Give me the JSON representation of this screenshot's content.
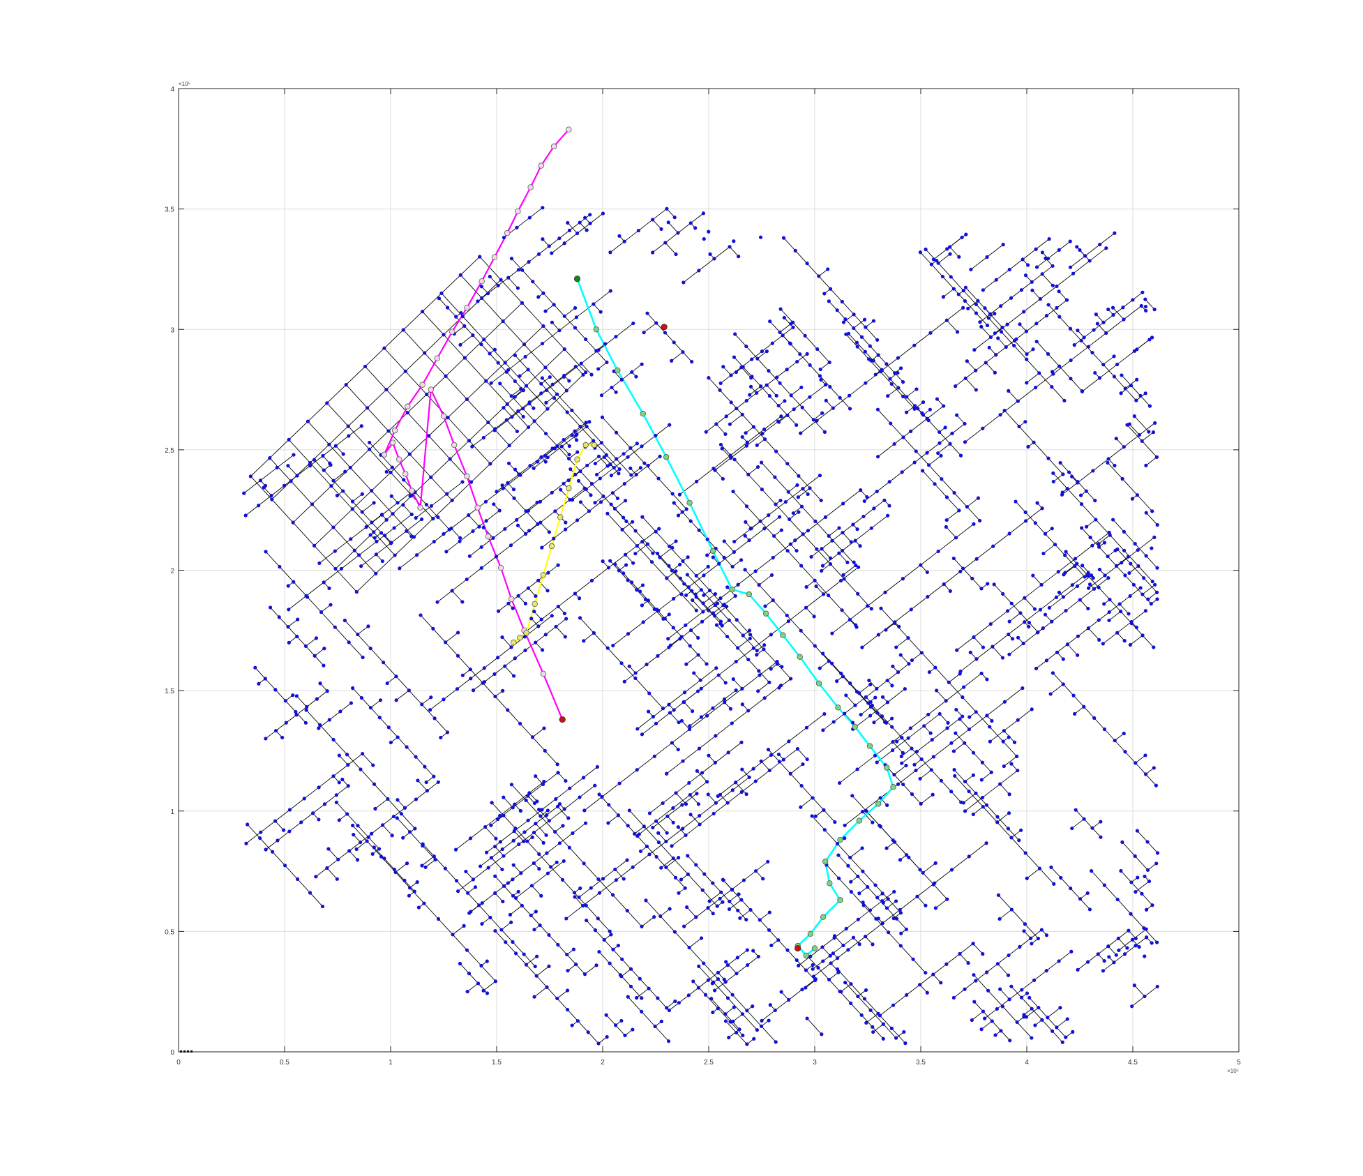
{
  "chart_data": {
    "type": "scatter",
    "title": "",
    "xlabel": "",
    "ylabel": "",
    "xlim": [
      0,
      500000
    ],
    "ylim": [
      0,
      400000
    ],
    "grid": true,
    "legend": "none",
    "x_ticks": [
      0,
      50000,
      100000,
      150000,
      200000,
      250000,
      300000,
      350000,
      400000,
      450000,
      500000
    ],
    "y_ticks": [
      0,
      50000,
      100000,
      150000,
      200000,
      250000,
      300000,
      350000,
      400000
    ],
    "x_tick_labels": [
      "0",
      "0.5",
      "1",
      "1.5",
      "2",
      "2.5",
      "3",
      "3.5",
      "4",
      "4.5",
      "5"
    ],
    "y_tick_labels": [
      "0",
      "0.5",
      "1",
      "1.5",
      "2",
      "2.5",
      "3",
      "3.5",
      "4"
    ],
    "x_exponent_label": "×10⁵",
    "y_exponent_label": "×10⁵",
    "colors": {
      "node": "#1010d8",
      "edge": "#000000",
      "path_magenta": "#ff00ff",
      "path_yellow": "#ffff00",
      "path_cyan": "#00ffff",
      "waypoint_fill": "#7fd47f",
      "endpoint": "#d01010",
      "grid": "#dcdcdc"
    },
    "series": [
      {
        "style": "magenta-path",
        "x": [
          181000,
          172000,
          163000,
          157000,
          152000,
          146000,
          141000,
          136000,
          130000,
          125000,
          119000,
          114000,
          110000,
          107000,
          104000,
          101000,
          97000,
          102000,
          108000,
          115000,
          122000,
          129000,
          136000,
          143000,
          149000,
          155000,
          160000,
          166000,
          171000,
          177000,
          184000
        ],
        "y": [
          138000,
          157000,
          175000,
          188000,
          201000,
          214000,
          226000,
          239000,
          252000,
          264000,
          275000,
          226000,
          233000,
          240000,
          246000,
          253000,
          248000,
          258000,
          268000,
          277000,
          288000,
          299000,
          309000,
          320000,
          330000,
          340000,
          349000,
          359000,
          368000,
          376000,
          383000
        ]
      },
      {
        "style": "yellow-path",
        "x": [
          158000,
          161000,
          164000,
          168000,
          172000,
          176000,
          180000,
          184000,
          188000,
          192000,
          196000
        ],
        "y": [
          170000,
          172000,
          174000,
          186000,
          198000,
          210000,
          222000,
          234000,
          246000,
          252000,
          252000
        ]
      },
      {
        "style": "cyan-path",
        "x": [
          188000,
          197000,
          207000,
          219000,
          230000,
          241000,
          252000,
          261000,
          269000,
          277000,
          285000,
          293000,
          302000,
          311000,
          319000,
          326000,
          334000,
          337000,
          330000,
          321000,
          312000,
          305000,
          307000,
          312000,
          304000,
          298000,
          292000,
          296000,
          300000
        ],
        "y": [
          321000,
          300000,
          283000,
          265000,
          247000,
          228000,
          208000,
          192000,
          190000,
          182000,
          173000,
          164000,
          153000,
          143000,
          135000,
          127000,
          118000,
          110000,
          103000,
          96000,
          88000,
          79000,
          70000,
          63000,
          56000,
          49000,
          44000,
          40000,
          43000
        ]
      },
      {
        "style": "endpoints",
        "x": [
          181000,
          229000,
          292000,
          188000
        ],
        "y": [
          138000,
          301000,
          43000,
          321000
        ]
      }
    ]
  }
}
